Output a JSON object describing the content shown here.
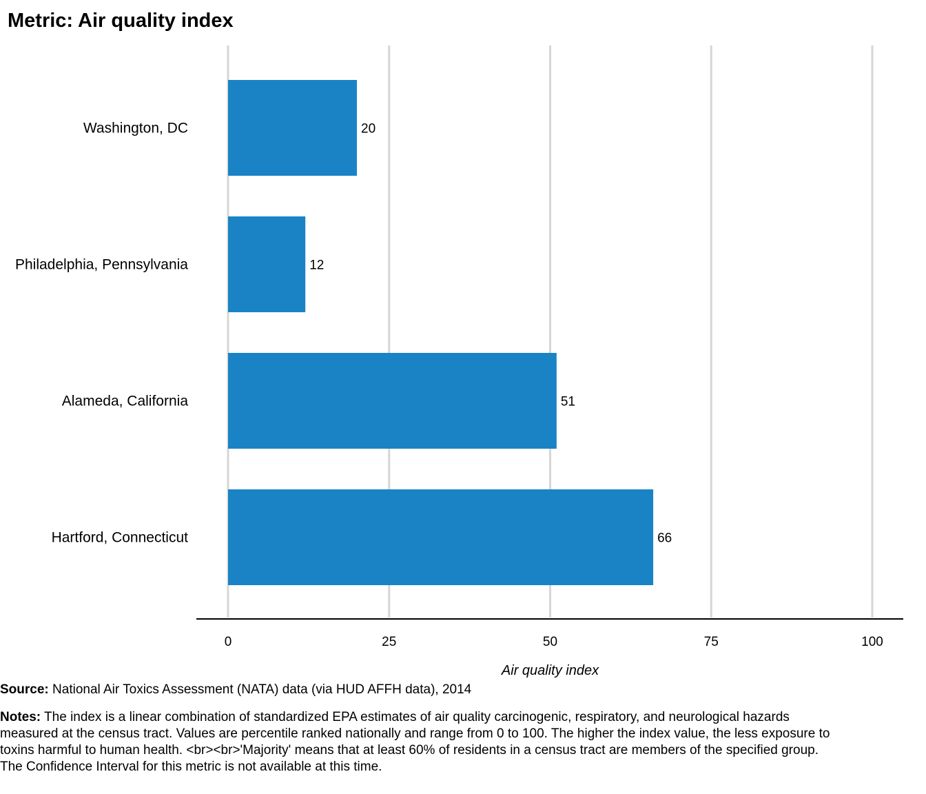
{
  "chart_data": {
    "type": "bar",
    "orientation": "horizontal",
    "title": "Metric: Air quality index",
    "categories": [
      "Washington, DC",
      "Philadelphia, Pennsylvania",
      "Alameda, California",
      "Hartford, Connecticut"
    ],
    "values": [
      20,
      12,
      51,
      66
    ],
    "data_labels": [
      "20",
      "12",
      "51",
      "66"
    ],
    "xlabel": "Air quality index",
    "ylabel": "",
    "xlim": [
      0,
      100
    ],
    "x_ticks": [
      0,
      25,
      50,
      75,
      100
    ],
    "grid": "vertical",
    "bar_color": "#1a83c6",
    "grid_color": "#d6d6d6"
  },
  "footer": {
    "source_label": "Source:",
    "source_text": " National Air Toxics Assessment (NATA) data (via HUD AFFH data), 2014",
    "notes_label": "Notes:",
    "notes_text": " The index is a linear combination of standardized EPA estimates of air quality carcinogenic, respiratory, and neurological hazards measured at the census tract. Values are percentile ranked nationally and range from 0 to 100. The higher the index value, the less exposure to toxins harmful to human health. <br><br>'Majority' means that at least 60% of residents in a census tract are members of the specified group. The Confidence Interval for this metric is not available at this time."
  }
}
